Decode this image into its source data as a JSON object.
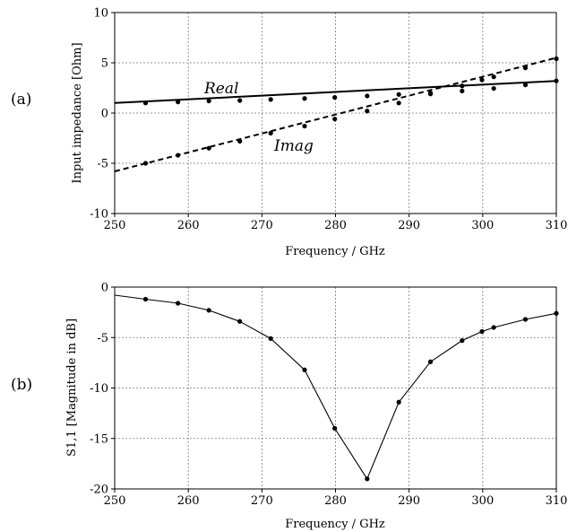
{
  "panels": [
    {
      "label": "(a)"
    },
    {
      "label": "(b)"
    }
  ],
  "chart_data": [
    {
      "type": "line",
      "panel": "(a)",
      "xlabel": "Frequency / GHz",
      "ylabel": "Input impedance [Ohm]",
      "xlim": [
        250,
        310
      ],
      "ylim": [
        -10,
        10
      ],
      "xticks": [
        250,
        260,
        270,
        280,
        290,
        300,
        310
      ],
      "yticks": [
        10,
        5,
        0,
        -5,
        -10
      ],
      "grid": true,
      "series": [
        {
          "name": "Real",
          "style": "solid",
          "color": "#000000",
          "line_x": [
            250,
            310
          ],
          "line_y": [
            1.0,
            3.2
          ],
          "x": [
            254.2,
            258.6,
            262.8,
            267.0,
            271.2,
            275.8,
            279.9,
            284.3,
            288.6,
            292.9,
            297.2,
            301.5,
            305.8,
            310.0
          ],
          "y": [
            1.0,
            1.1,
            1.2,
            1.25,
            1.35,
            1.45,
            1.55,
            1.7,
            1.85,
            2.0,
            2.2,
            2.45,
            2.8,
            3.2
          ]
        },
        {
          "name": "Imag",
          "style": "dashed",
          "color": "#000000",
          "line_x": [
            250,
            310
          ],
          "line_y": [
            -5.8,
            5.5
          ],
          "x": [
            254.2,
            258.6,
            262.8,
            267.0,
            271.2,
            275.8,
            279.9,
            284.3,
            288.6,
            292.9,
            297.2,
            299.9,
            301.5,
            305.8,
            310.0
          ],
          "y": [
            -5.0,
            -4.2,
            -3.5,
            -2.8,
            -2.0,
            -1.3,
            -0.6,
            0.2,
            1.0,
            1.9,
            2.7,
            3.3,
            3.6,
            4.5,
            5.4
          ]
        }
      ]
    },
    {
      "type": "line",
      "panel": "(b)",
      "xlabel": "Frequency / GHz",
      "ylabel": "S1,1 [Magnitude in dB]",
      "xlim": [
        250,
        310
      ],
      "ylim": [
        -20,
        0
      ],
      "xticks": [
        250,
        260,
        270,
        280,
        290,
        300,
        310
      ],
      "yticks": [
        0,
        -5,
        -10,
        -15,
        -20
      ],
      "grid": true,
      "series": [
        {
          "style": "solid",
          "color": "#000000",
          "line_x": [
            250,
            254.2,
            258.6,
            262.8,
            267.0,
            271.2,
            275.8,
            279.9,
            284.3,
            288.6,
            292.9,
            297.2,
            299.9,
            301.5,
            305.8,
            310.0
          ],
          "line_y": [
            -0.8,
            -1.2,
            -1.6,
            -2.3,
            -3.4,
            -5.1,
            -8.2,
            -14.0,
            -19.0,
            -11.4,
            -7.4,
            -5.3,
            -4.4,
            -4.0,
            -3.2,
            -2.6
          ],
          "x": [
            254.2,
            258.6,
            262.8,
            267.0,
            271.2,
            275.8,
            279.9,
            284.3,
            288.6,
            292.9,
            297.2,
            299.9,
            301.5,
            305.8,
            310.0
          ],
          "y": [
            -1.2,
            -1.6,
            -2.3,
            -3.4,
            -5.1,
            -8.2,
            -14.0,
            -19.0,
            -11.4,
            -7.4,
            -5.3,
            -4.4,
            -4.0,
            -3.2,
            -2.6
          ]
        }
      ]
    }
  ]
}
